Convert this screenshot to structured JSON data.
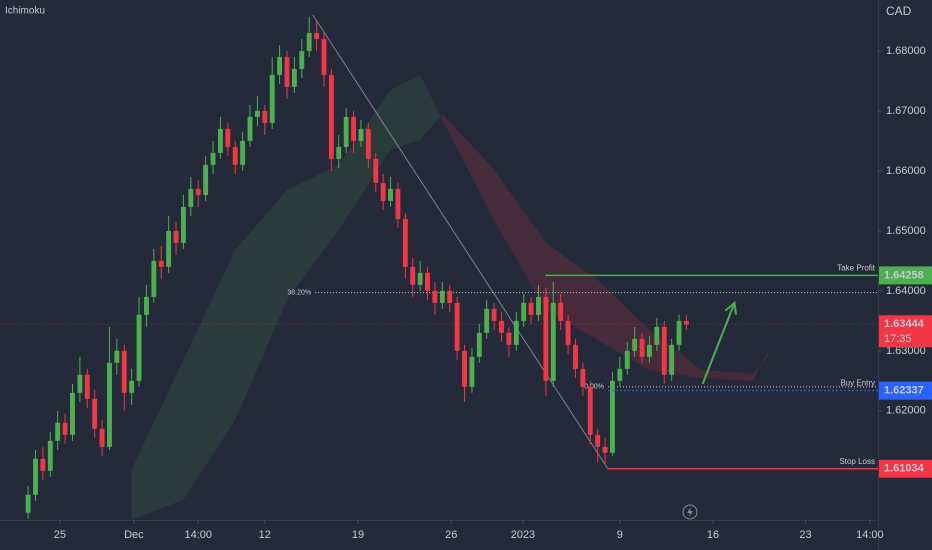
{
  "chart_data": {
    "type": "candlestick",
    "indicator": "Ichimoku",
    "currency": "CAD",
    "up_color": "#4caf50",
    "down_color": "#f23645",
    "grid": false,
    "xlim": [
      -3.8,
      114.9
    ],
    "xticks": [
      {
        "value": 4.3,
        "label": "25"
      },
      {
        "value": 14.3,
        "label": "Dec"
      },
      {
        "value": 23,
        "label": "14:00"
      },
      {
        "value": 32,
        "label": "12"
      },
      {
        "value": 44.6,
        "label": "19"
      },
      {
        "value": 57.2,
        "label": "26"
      },
      {
        "value": 66.9,
        "label": "2023"
      },
      {
        "value": 80,
        "label": "9"
      },
      {
        "value": 92.6,
        "label": "16"
      },
      {
        "value": 105.1,
        "label": "23"
      },
      {
        "value": 113.8,
        "label": "14:00"
      }
    ],
    "ylim": [
      1.6018,
      1.6885
    ],
    "yticks": [
      {
        "value": 1.62,
        "label": "1.62000"
      },
      {
        "value": 1.63,
        "label": "1.63000"
      },
      {
        "value": 1.64,
        "label": "1.64000"
      },
      {
        "value": 1.65,
        "label": "1.65000"
      },
      {
        "value": 1.66,
        "label": "1.66000"
      },
      {
        "value": 1.67,
        "label": "1.67000"
      },
      {
        "value": 1.68,
        "label": "1.68000"
      }
    ],
    "candles": [
      [
        1.603,
        1.6075,
        1.602,
        1.606
      ],
      [
        1.606,
        1.6135,
        1.605,
        1.612
      ],
      [
        1.612,
        1.614,
        1.6085,
        1.61
      ],
      [
        1.61,
        1.6165,
        1.609,
        1.615
      ],
      [
        1.615,
        1.62,
        1.6135,
        1.618
      ],
      [
        1.618,
        1.6195,
        1.6145,
        1.616
      ],
      [
        1.616,
        1.6245,
        1.615,
        1.623
      ],
      [
        1.623,
        1.629,
        1.6215,
        1.626
      ],
      [
        1.626,
        1.627,
        1.6205,
        1.622
      ],
      [
        1.622,
        1.6235,
        1.6155,
        1.617
      ],
      [
        1.617,
        1.6185,
        1.6125,
        1.614
      ],
      [
        1.614,
        1.634,
        1.6135,
        1.628
      ],
      [
        1.628,
        1.632,
        1.626,
        1.63
      ],
      [
        1.63,
        1.631,
        1.62,
        1.623
      ],
      [
        1.623,
        1.627,
        1.621,
        1.625
      ],
      [
        1.625,
        1.639,
        1.624,
        1.636
      ],
      [
        1.636,
        1.641,
        1.634,
        1.639
      ],
      [
        1.639,
        1.647,
        1.638,
        1.645
      ],
      [
        1.645,
        1.6475,
        1.642,
        1.644
      ],
      [
        1.644,
        1.6525,
        1.643,
        1.65
      ],
      [
        1.65,
        1.6515,
        1.646,
        1.648
      ],
      [
        1.648,
        1.656,
        1.647,
        1.654
      ],
      [
        1.654,
        1.659,
        1.6525,
        1.657
      ],
      [
        1.657,
        1.6585,
        1.654,
        1.656
      ],
      [
        1.656,
        1.6625,
        1.655,
        1.661
      ],
      [
        1.661,
        1.665,
        1.6595,
        1.663
      ],
      [
        1.663,
        1.669,
        1.662,
        1.667
      ],
      [
        1.667,
        1.668,
        1.6625,
        1.664
      ],
      [
        1.664,
        1.665,
        1.6595,
        1.661
      ],
      [
        1.661,
        1.6665,
        1.66,
        1.665
      ],
      [
        1.665,
        1.671,
        1.664,
        1.669
      ],
      [
        1.669,
        1.6725,
        1.6675,
        1.67
      ],
      [
        1.67,
        1.671,
        1.666,
        1.668
      ],
      [
        1.668,
        1.679,
        1.667,
        1.676
      ],
      [
        1.676,
        1.681,
        1.6745,
        1.679
      ],
      [
        1.679,
        1.68,
        1.672,
        1.674
      ],
      [
        1.674,
        1.679,
        1.673,
        1.677
      ],
      [
        1.677,
        1.682,
        1.6755,
        1.68
      ],
      [
        1.68,
        1.6857,
        1.679,
        1.683
      ],
      [
        1.683,
        1.685,
        1.68,
        1.682
      ],
      [
        1.682,
        1.683,
        1.674,
        1.676
      ],
      [
        1.676,
        1.677,
        1.66,
        1.662
      ],
      [
        1.662,
        1.666,
        1.6605,
        1.664
      ],
      [
        1.664,
        1.6705,
        1.663,
        1.669
      ],
      [
        1.669,
        1.67,
        1.663,
        1.665
      ],
      [
        1.665,
        1.6685,
        1.664,
        1.667
      ],
      [
        1.667,
        1.668,
        1.6605,
        1.662
      ],
      [
        1.662,
        1.663,
        1.6565,
        1.658
      ],
      [
        1.658,
        1.6595,
        1.6535,
        1.655
      ],
      [
        1.655,
        1.659,
        1.654,
        1.657
      ],
      [
        1.657,
        1.658,
        1.6505,
        1.652
      ],
      [
        1.652,
        1.653,
        1.642,
        1.644
      ],
      [
        1.644,
        1.6455,
        1.639,
        1.641
      ],
      [
        1.641,
        1.645,
        1.64,
        1.643
      ],
      [
        1.643,
        1.644,
        1.6385,
        1.64
      ],
      [
        1.64,
        1.6415,
        1.636,
        1.638
      ],
      [
        1.638,
        1.6415,
        1.637,
        1.64
      ],
      [
        1.64,
        1.641,
        1.6365,
        1.638
      ],
      [
        1.638,
        1.639,
        1.6285,
        1.63
      ],
      [
        1.63,
        1.631,
        1.6215,
        1.624
      ],
      [
        1.624,
        1.6305,
        1.623,
        1.629
      ],
      [
        1.629,
        1.6345,
        1.628,
        1.633
      ],
      [
        1.633,
        1.6385,
        1.632,
        1.637
      ],
      [
        1.637,
        1.638,
        1.6335,
        1.635
      ],
      [
        1.635,
        1.6365,
        1.6315,
        1.633
      ],
      [
        1.633,
        1.634,
        1.629,
        1.631
      ],
      [
        1.631,
        1.6365,
        1.63,
        1.635
      ],
      [
        1.635,
        1.6395,
        1.634,
        1.638
      ],
      [
        1.638,
        1.639,
        1.6345,
        1.636
      ],
      [
        1.636,
        1.641,
        1.635,
        1.639
      ],
      [
        1.639,
        1.6405,
        1.6225,
        1.625
      ],
      [
        1.625,
        1.6415,
        1.624,
        1.638
      ],
      [
        1.638,
        1.6395,
        1.6335,
        1.635
      ],
      [
        1.635,
        1.636,
        1.6295,
        1.631
      ],
      [
        1.631,
        1.632,
        1.6255,
        1.627
      ],
      [
        1.627,
        1.628,
        1.6225,
        1.624
      ],
      [
        1.624,
        1.625,
        1.6145,
        1.616
      ],
      [
        1.616,
        1.617,
        1.6115,
        1.614
      ],
      [
        1.614,
        1.6155,
        1.611,
        1.613
      ],
      [
        1.613,
        1.6265,
        1.6125,
        1.625
      ],
      [
        1.625,
        1.629,
        1.624,
        1.627
      ],
      [
        1.627,
        1.6315,
        1.626,
        1.63
      ],
      [
        1.63,
        1.634,
        1.629,
        1.632
      ],
      [
        1.632,
        1.633,
        1.628,
        1.629
      ],
      [
        1.629,
        1.6325,
        1.628,
        1.631
      ],
      [
        1.631,
        1.6355,
        1.63,
        1.634
      ],
      [
        1.634,
        1.635,
        1.6245,
        1.626
      ],
      [
        1.626,
        1.632,
        1.625,
        1.631
      ],
      [
        1.631,
        1.636,
        1.63,
        1.635
      ],
      [
        1.635,
        1.636,
        1.6335,
        1.6344
      ]
    ],
    "cloud": {
      "x": [
        14,
        21,
        28,
        35,
        42,
        49,
        53,
        56,
        63,
        70,
        77,
        84,
        91,
        98,
        100
      ],
      "span_a": [
        1.6102,
        1.6285,
        1.6468,
        1.6568,
        1.661,
        1.6735,
        1.676,
        1.6685,
        1.6518,
        1.6368,
        1.6318,
        1.6268,
        1.6255,
        1.625,
        1.6298
      ],
      "span_b": [
        1.6018,
        1.6052,
        1.6185,
        1.6385,
        1.6502,
        1.6635,
        1.6652,
        1.6695,
        1.6602,
        1.648,
        1.6418,
        1.6335,
        1.6268,
        1.6262,
        1.629
      ],
      "up_color": "rgba(76,175,80,0.13)",
      "down_color": "rgba(242,54,69,0.16)"
    },
    "fib_line": {
      "x": [
        38.5,
        78.4
      ],
      "y": [
        1.686,
        1.6103
      ]
    },
    "fib_levels": [
      {
        "label": "38.20%",
        "value": 1.6397,
        "x_start": 38.8
      },
      {
        "label": "0.00%",
        "value": 1.624,
        "x_start": 78.4
      }
    ],
    "trade_levels": [
      {
        "label": "Take Profit",
        "value": 1.64258,
        "x_start": 69.9,
        "color": "#4caf50",
        "dashed": false
      },
      {
        "label": "Buy Entry",
        "value": 1.62337,
        "x_start": 78.4,
        "color": "#2962ff",
        "dashed": true
      },
      {
        "label": "Stop Loss",
        "value": 1.61034,
        "x_start": 78.4,
        "color": "#f23645",
        "dashed": false
      }
    ],
    "last_price": {
      "value": 1.63444,
      "countdown": "17:35",
      "color": "#f23645"
    },
    "arrow": {
      "x": [
        91.2,
        95.5
      ],
      "y": [
        1.6245,
        1.638
      ],
      "color": "#4caf50"
    }
  }
}
